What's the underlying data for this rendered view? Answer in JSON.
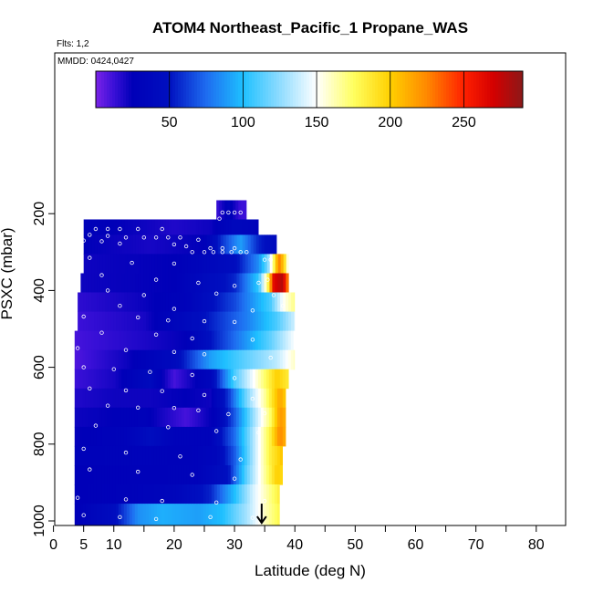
{
  "chart_data": {
    "type": "heatmap",
    "title": "ATOM4 Northeast_Pacific_1 Propane_WAS",
    "flights_label": "Flts: 1,2",
    "dates_label": "MMDD: 0424,0427",
    "xlabel": "Latitude (deg N)",
    "ylabel": "PSXC (mbar)",
    "xlim": [
      0,
      85
    ],
    "ylim": [
      1010,
      0
    ],
    "x_ticks": [
      {
        "value": 0,
        "label": "0"
      },
      {
        "value": 5,
        "label": "5"
      },
      {
        "value": 10,
        "label": "10"
      },
      {
        "value": 20,
        "label": "20"
      },
      {
        "value": 30,
        "label": "30"
      },
      {
        "value": 40,
        "label": "40"
      },
      {
        "value": 50,
        "label": "50"
      },
      {
        "value": 60,
        "label": "60"
      },
      {
        "value": 70,
        "label": "70"
      },
      {
        "value": 80,
        "label": "80"
      }
    ],
    "x_minor_ticks": [
      15,
      25,
      35,
      45,
      55,
      65,
      75,
      85
    ],
    "y_ticks": [
      {
        "value": 200,
        "label": "200"
      },
      {
        "value": 400,
        "label": "400"
      },
      {
        "value": 600,
        "label": "600"
      },
      {
        "value": 800,
        "label": "800"
      },
      {
        "value": 1000,
        "label": "1000"
      }
    ],
    "colorbar": {
      "min": 0,
      "max": 290,
      "ticks": [
        {
          "value": 50,
          "label": "50"
        },
        {
          "value": 100,
          "label": "100"
        },
        {
          "value": 150,
          "label": "150"
        },
        {
          "value": 200,
          "label": "200"
        },
        {
          "value": 250,
          "label": "250"
        }
      ],
      "stops": [
        {
          "v": 0,
          "c": "#7b22e8"
        },
        {
          "v": 12,
          "c": "#3b10d8"
        },
        {
          "v": 25,
          "c": "#0000b8"
        },
        {
          "v": 50,
          "c": "#0010c0"
        },
        {
          "v": 75,
          "c": "#1e6cf0"
        },
        {
          "v": 100,
          "c": "#1ec0ff"
        },
        {
          "v": 125,
          "c": "#8fdcff"
        },
        {
          "v": 150,
          "c": "#ffffff"
        },
        {
          "v": 175,
          "c": "#ffff60"
        },
        {
          "v": 200,
          "c": "#ffd000"
        },
        {
          "v": 225,
          "c": "#ff8800"
        },
        {
          "v": 250,
          "c": "#ff2000"
        },
        {
          "v": 270,
          "c": "#d40000"
        },
        {
          "v": 290,
          "c": "#8c1818"
        }
      ]
    },
    "field": {
      "layers": [
        {
          "p_top": 165,
          "p_bot": 215,
          "x_start": 27,
          "x_end": 32,
          "ctrl": [
            [
              27,
              12
            ],
            [
              29,
              30
            ],
            [
              31,
              12
            ]
          ]
        },
        {
          "p_top": 215,
          "p_bot": 255,
          "x_start": 5,
          "x_end": 34,
          "ctrl": [
            [
              5,
              28
            ],
            [
              15,
              22
            ],
            [
              20,
              18
            ],
            [
              26,
              22
            ],
            [
              30,
              38
            ],
            [
              34,
              30
            ]
          ]
        },
        {
          "p_top": 255,
          "p_bot": 305,
          "x_start": 5,
          "x_end": 37,
          "ctrl": [
            [
              5,
              25
            ],
            [
              16,
              20
            ],
            [
              25,
              25
            ],
            [
              28,
              60
            ],
            [
              31,
              90
            ],
            [
              34,
              55
            ],
            [
              37,
              40
            ]
          ]
        },
        {
          "p_top": 305,
          "p_bot": 355,
          "x_start": 5,
          "x_end": 39,
          "ctrl": [
            [
              5,
              22
            ],
            [
              20,
              25
            ],
            [
              30,
              45
            ],
            [
              34,
              85
            ],
            [
              35.5,
              120
            ],
            [
              36.5,
              175
            ],
            [
              37.3,
              230
            ],
            [
              38.2,
              200
            ],
            [
              39,
              140
            ]
          ]
        },
        {
          "p_top": 355,
          "p_bot": 405,
          "x_start": 4.5,
          "x_end": 39,
          "ctrl": [
            [
              4.5,
              22
            ],
            [
              20,
              25
            ],
            [
              30,
              55
            ],
            [
              34,
              105
            ],
            [
              35.5,
              175
            ],
            [
              36.5,
              265
            ],
            [
              38,
              280
            ],
            [
              39,
              215
            ]
          ]
        },
        {
          "p_top": 405,
          "p_bot": 455,
          "x_start": 4,
          "x_end": 40,
          "ctrl": [
            [
              4,
              15
            ],
            [
              14,
              22
            ],
            [
              22,
              30
            ],
            [
              30,
              65
            ],
            [
              36,
              110
            ],
            [
              38,
              150
            ],
            [
              40,
              170
            ]
          ]
        },
        {
          "p_top": 455,
          "p_bot": 505,
          "x_start": 4,
          "x_end": 40,
          "ctrl": [
            [
              4,
              12
            ],
            [
              15,
              20
            ],
            [
              24,
              45
            ],
            [
              32,
              80
            ],
            [
              37,
              110
            ],
            [
              40,
              140
            ]
          ]
        },
        {
          "p_top": 505,
          "p_bot": 555,
          "x_start": 3.5,
          "x_end": 40,
          "ctrl": [
            [
              3.5,
              10
            ],
            [
              14,
              18
            ],
            [
              22,
              25
            ],
            [
              30,
              75
            ],
            [
              36,
              115
            ],
            [
              40,
              150
            ]
          ]
        },
        {
          "p_top": 555,
          "p_bot": 605,
          "x_start": 3.5,
          "x_end": 40,
          "ctrl": [
            [
              3.5,
              8
            ],
            [
              12,
              22
            ],
            [
              20,
              40
            ],
            [
              26,
              90
            ],
            [
              32,
              115
            ],
            [
              37,
              135
            ],
            [
              40,
              160
            ]
          ]
        },
        {
          "p_top": 605,
          "p_bot": 655,
          "x_start": 3.5,
          "x_end": 39,
          "ctrl": [
            [
              3.5,
              12
            ],
            [
              10,
              20
            ],
            [
              16,
              40
            ],
            [
              20,
              10
            ],
            [
              26,
              35
            ],
            [
              30,
              110
            ],
            [
              34,
              160
            ],
            [
              37,
              200
            ],
            [
              39,
              185
            ]
          ]
        },
        {
          "p_top": 655,
          "p_bot": 705,
          "x_start": 3.5,
          "x_end": 38.5,
          "ctrl": [
            [
              3.5,
              18
            ],
            [
              10,
              22
            ],
            [
              16,
              22
            ],
            [
              22,
              25
            ],
            [
              26,
              22
            ],
            [
              29,
              60
            ],
            [
              32,
              120
            ],
            [
              35,
              165
            ],
            [
              37.5,
              215
            ],
            [
              38.5,
              200
            ]
          ]
        },
        {
          "p_top": 705,
          "p_bot": 755,
          "x_start": 3.5,
          "x_end": 38.5,
          "ctrl": [
            [
              3.5,
              22
            ],
            [
              10,
              25
            ],
            [
              15,
              28
            ],
            [
              22,
              10
            ],
            [
              27,
              28
            ],
            [
              30,
              70
            ],
            [
              33,
              125
            ],
            [
              36,
              175
            ],
            [
              37.5,
              220
            ],
            [
              38.5,
              210
            ]
          ]
        },
        {
          "p_top": 755,
          "p_bot": 805,
          "x_start": 3.5,
          "x_end": 38.5,
          "ctrl": [
            [
              3.5,
              24
            ],
            [
              12,
              30
            ],
            [
              16,
              45
            ],
            [
              20,
              30
            ],
            [
              26,
              30
            ],
            [
              30,
              75
            ],
            [
              33,
              130
            ],
            [
              36,
              185
            ],
            [
              37.5,
              225
            ],
            [
              38.5,
              210
            ]
          ]
        },
        {
          "p_top": 805,
          "p_bot": 855,
          "x_start": 3.5,
          "x_end": 38,
          "ctrl": [
            [
              3.5,
              28
            ],
            [
              15,
              30
            ],
            [
              22,
              28
            ],
            [
              27,
              35
            ],
            [
              30,
              70
            ],
            [
              33,
              130
            ],
            [
              36,
              185
            ],
            [
              38,
              205
            ]
          ]
        },
        {
          "p_top": 855,
          "p_bot": 905,
          "x_start": 3.5,
          "x_end": 38,
          "ctrl": [
            [
              3.5,
              25
            ],
            [
              15,
              28
            ],
            [
              24,
              30
            ],
            [
              29,
              50
            ],
            [
              32,
              115
            ],
            [
              35,
              165
            ],
            [
              37,
              200
            ],
            [
              38,
              195
            ]
          ]
        },
        {
          "p_top": 905,
          "p_bot": 955,
          "x_start": 3.5,
          "x_end": 37.5,
          "ctrl": [
            [
              3.5,
              25
            ],
            [
              12,
              28
            ],
            [
              20,
              35
            ],
            [
              26,
              55
            ],
            [
              30,
              100
            ],
            [
              33,
              140
            ],
            [
              36,
              170
            ],
            [
              37.5,
              185
            ]
          ]
        },
        {
          "p_top": 955,
          "p_bot": 1010,
          "x_start": 3.5,
          "x_end": 37.5,
          "ctrl": [
            [
              3.5,
              25
            ],
            [
              10,
              45
            ],
            [
              14,
              85
            ],
            [
              18,
              95
            ],
            [
              24,
              90
            ],
            [
              28,
              100
            ],
            [
              32,
              130
            ],
            [
              35,
              160
            ],
            [
              37.5,
              180
            ]
          ]
        }
      ]
    },
    "samples": [
      {
        "x": 28,
        "p": 197
      },
      {
        "x": 29,
        "p": 197
      },
      {
        "x": 30,
        "p": 197
      },
      {
        "x": 31,
        "p": 197
      },
      {
        "x": 27.5,
        "p": 213
      },
      {
        "x": 7,
        "p": 240
      },
      {
        "x": 9,
        "p": 240
      },
      {
        "x": 11,
        "p": 240
      },
      {
        "x": 14,
        "p": 240
      },
      {
        "x": 18,
        "p": 240
      },
      {
        "x": 6,
        "p": 255
      },
      {
        "x": 9,
        "p": 258
      },
      {
        "x": 12,
        "p": 262
      },
      {
        "x": 15,
        "p": 262
      },
      {
        "x": 17,
        "p": 262
      },
      {
        "x": 19,
        "p": 262
      },
      {
        "x": 21,
        "p": 262
      },
      {
        "x": 24,
        "p": 268
      },
      {
        "x": 5,
        "p": 270
      },
      {
        "x": 8,
        "p": 272
      },
      {
        "x": 11,
        "p": 278
      },
      {
        "x": 20,
        "p": 280
      },
      {
        "x": 22,
        "p": 285
      },
      {
        "x": 26,
        "p": 290
      },
      {
        "x": 28,
        "p": 290
      },
      {
        "x": 30,
        "p": 290
      },
      {
        "x": 23,
        "p": 300
      },
      {
        "x": 25,
        "p": 300
      },
      {
        "x": 26.5,
        "p": 300
      },
      {
        "x": 28,
        "p": 300
      },
      {
        "x": 29.5,
        "p": 300
      },
      {
        "x": 31,
        "p": 300
      },
      {
        "x": 32,
        "p": 300
      },
      {
        "x": 6,
        "p": 315
      },
      {
        "x": 13,
        "p": 328
      },
      {
        "x": 20,
        "p": 330
      },
      {
        "x": 35,
        "p": 320
      },
      {
        "x": 36,
        "p": 320
      },
      {
        "x": 8,
        "p": 360
      },
      {
        "x": 17,
        "p": 372
      },
      {
        "x": 24,
        "p": 380
      },
      {
        "x": 30,
        "p": 388
      },
      {
        "x": 34,
        "p": 380
      },
      {
        "x": 35.5,
        "p": 372
      },
      {
        "x": 9,
        "p": 400
      },
      {
        "x": 15,
        "p": 412
      },
      {
        "x": 27,
        "p": 408
      },
      {
        "x": 36.5,
        "p": 412
      },
      {
        "x": 11,
        "p": 440
      },
      {
        "x": 20,
        "p": 448
      },
      {
        "x": 33,
        "p": 452
      },
      {
        "x": 38,
        "p": 440
      },
      {
        "x": 5,
        "p": 468
      },
      {
        "x": 14,
        "p": 470
      },
      {
        "x": 19,
        "p": 478
      },
      {
        "x": 25,
        "p": 480
      },
      {
        "x": 30,
        "p": 482
      },
      {
        "x": 8,
        "p": 510
      },
      {
        "x": 17,
        "p": 515
      },
      {
        "x": 23,
        "p": 525
      },
      {
        "x": 33,
        "p": 528
      },
      {
        "x": 4,
        "p": 550
      },
      {
        "x": 12,
        "p": 555
      },
      {
        "x": 20,
        "p": 560
      },
      {
        "x": 25,
        "p": 566
      },
      {
        "x": 36,
        "p": 575
      },
      {
        "x": 5,
        "p": 600
      },
      {
        "x": 10,
        "p": 605
      },
      {
        "x": 16,
        "p": 612
      },
      {
        "x": 23,
        "p": 620
      },
      {
        "x": 30,
        "p": 628
      },
      {
        "x": 6,
        "p": 655
      },
      {
        "x": 12,
        "p": 660
      },
      {
        "x": 18,
        "p": 662
      },
      {
        "x": 25,
        "p": 672
      },
      {
        "x": 33,
        "p": 682
      },
      {
        "x": 9,
        "p": 700
      },
      {
        "x": 14,
        "p": 705
      },
      {
        "x": 20,
        "p": 706
      },
      {
        "x": 24,
        "p": 712
      },
      {
        "x": 29,
        "p": 722
      },
      {
        "x": 35,
        "p": 720
      },
      {
        "x": 7,
        "p": 752
      },
      {
        "x": 19,
        "p": 756
      },
      {
        "x": 27,
        "p": 766
      },
      {
        "x": 34,
        "p": 770
      },
      {
        "x": 5,
        "p": 812
      },
      {
        "x": 12,
        "p": 822
      },
      {
        "x": 21,
        "p": 832
      },
      {
        "x": 31,
        "p": 840
      },
      {
        "x": 6,
        "p": 866
      },
      {
        "x": 14,
        "p": 872
      },
      {
        "x": 23,
        "p": 880
      },
      {
        "x": 30,
        "p": 890
      },
      {
        "x": 4,
        "p": 940
      },
      {
        "x": 12,
        "p": 944
      },
      {
        "x": 18,
        "p": 948
      },
      {
        "x": 27,
        "p": 952
      },
      {
        "x": 35,
        "p": 948
      },
      {
        "x": 5,
        "p": 985
      },
      {
        "x": 11,
        "p": 990
      },
      {
        "x": 17,
        "p": 995
      },
      {
        "x": 26,
        "p": 990
      },
      {
        "x": 33,
        "p": 992
      }
    ],
    "marker": {
      "type": "down-arrow",
      "x": 34.5,
      "p_from": 955,
      "p_to": 1005
    }
  }
}
